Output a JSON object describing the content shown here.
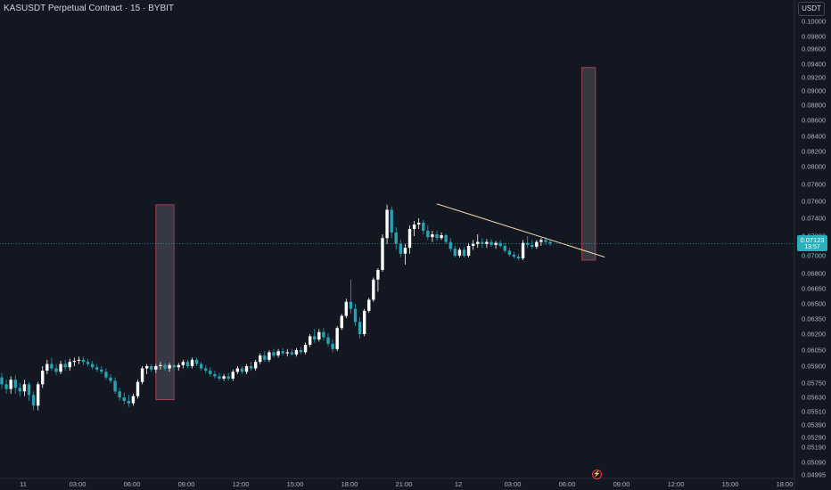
{
  "header": {
    "title": "KASUSDT Perpetual Contract · 15 · BYBIT"
  },
  "axis": {
    "currency": "USDT"
  },
  "current_price": {
    "value": "0.07123",
    "countdown": "13:57"
  },
  "colors": {
    "background": "#131722",
    "up": "#ffffff",
    "down": "#26a2b1",
    "trendline": "#f6d9a6",
    "zone_fill": "#4a4c56",
    "zone_border": "#c2454f",
    "price_line": "#2ab0bd"
  },
  "icons": {
    "flash": "lightning-icon"
  },
  "chart_data": {
    "type": "candlestick",
    "ylim": [
      0.0495,
      0.101
    ],
    "xlim": [
      "2024-09-10 21:45",
      "2024-09-12 18:00"
    ],
    "y_ticks": [
      "0.10000",
      "0.09800",
      "0.09600",
      "0.09400",
      "0.09200",
      "0.09000",
      "0.08800",
      "0.08600",
      "0.08400",
      "0.08200",
      "0.08000",
      "0.07800",
      "0.07600",
      "0.07400",
      "0.07200",
      "0.07000",
      "0.06800",
      "0.06650",
      "0.06500",
      "0.06350",
      "0.06200",
      "0.06050",
      "0.05900",
      "0.05750",
      "0.05630",
      "0.05510",
      "0.05390",
      "0.05290",
      "0.05190",
      "0.05090",
      "0.04995"
    ],
    "x_ticks": [
      "11",
      "03:00",
      "06:00",
      "09:00",
      "12:00",
      "15:00",
      "18:00",
      "21:00",
      "12",
      "03:00",
      "06:00",
      "09:00",
      "12:00",
      "15:00",
      "18:00"
    ],
    "candles": [
      {
        "o": 0.058,
        "h": 0.0584,
        "l": 0.057,
        "c": 0.0574
      },
      {
        "o": 0.0574,
        "h": 0.0578,
        "l": 0.0566,
        "c": 0.057
      },
      {
        "o": 0.057,
        "h": 0.0581,
        "l": 0.0566,
        "c": 0.0578
      },
      {
        "o": 0.0578,
        "h": 0.0582,
        "l": 0.0566,
        "c": 0.0571
      },
      {
        "o": 0.0571,
        "h": 0.0575,
        "l": 0.0564,
        "c": 0.0568
      },
      {
        "o": 0.0568,
        "h": 0.0578,
        "l": 0.0564,
        "c": 0.0574
      },
      {
        "o": 0.0574,
        "h": 0.0576,
        "l": 0.056,
        "c": 0.0565
      },
      {
        "o": 0.0565,
        "h": 0.0568,
        "l": 0.0552,
        "c": 0.0556
      },
      {
        "o": 0.0556,
        "h": 0.0576,
        "l": 0.0552,
        "c": 0.0574
      },
      {
        "o": 0.0574,
        "h": 0.059,
        "l": 0.0571,
        "c": 0.0586
      },
      {
        "o": 0.0586,
        "h": 0.0596,
        "l": 0.0583,
        "c": 0.0592
      },
      {
        "o": 0.0592,
        "h": 0.0598,
        "l": 0.0586,
        "c": 0.0588
      },
      {
        "o": 0.0588,
        "h": 0.0592,
        "l": 0.0582,
        "c": 0.0585
      },
      {
        "o": 0.0585,
        "h": 0.0595,
        "l": 0.0583,
        "c": 0.0592
      },
      {
        "o": 0.0592,
        "h": 0.0596,
        "l": 0.0586,
        "c": 0.0589
      },
      {
        "o": 0.0589,
        "h": 0.0597,
        "l": 0.0586,
        "c": 0.0594
      },
      {
        "o": 0.0594,
        "h": 0.0598,
        "l": 0.059,
        "c": 0.0595
      },
      {
        "o": 0.0595,
        "h": 0.0599,
        "l": 0.0592,
        "c": 0.0596
      },
      {
        "o": 0.0596,
        "h": 0.0599,
        "l": 0.0591,
        "c": 0.0594
      },
      {
        "o": 0.0594,
        "h": 0.0597,
        "l": 0.059,
        "c": 0.0592
      },
      {
        "o": 0.0592,
        "h": 0.0595,
        "l": 0.0587,
        "c": 0.0589
      },
      {
        "o": 0.0589,
        "h": 0.0592,
        "l": 0.0585,
        "c": 0.0587
      },
      {
        "o": 0.0587,
        "h": 0.059,
        "l": 0.0583,
        "c": 0.0585
      },
      {
        "o": 0.0585,
        "h": 0.0588,
        "l": 0.0578,
        "c": 0.058
      },
      {
        "o": 0.058,
        "h": 0.0583,
        "l": 0.0575,
        "c": 0.0577
      },
      {
        "o": 0.0577,
        "h": 0.058,
        "l": 0.0566,
        "c": 0.0568
      },
      {
        "o": 0.0568,
        "h": 0.0571,
        "l": 0.056,
        "c": 0.0563
      },
      {
        "o": 0.0563,
        "h": 0.0567,
        "l": 0.0557,
        "c": 0.056
      },
      {
        "o": 0.056,
        "h": 0.0565,
        "l": 0.0555,
        "c": 0.0558
      },
      {
        "o": 0.0558,
        "h": 0.0566,
        "l": 0.0556,
        "c": 0.0564
      },
      {
        "o": 0.0564,
        "h": 0.0578,
        "l": 0.0562,
        "c": 0.0576
      },
      {
        "o": 0.0576,
        "h": 0.059,
        "l": 0.0574,
        "c": 0.0588
      },
      {
        "o": 0.0588,
        "h": 0.0592,
        "l": 0.0583,
        "c": 0.059
      },
      {
        "o": 0.059,
        "h": 0.0592,
        "l": 0.0585,
        "c": 0.0587
      },
      {
        "o": 0.0587,
        "h": 0.0592,
        "l": 0.0584,
        "c": 0.059
      },
      {
        "o": 0.059,
        "h": 0.0594,
        "l": 0.0587,
        "c": 0.0591
      },
      {
        "o": 0.0591,
        "h": 0.0593,
        "l": 0.0586,
        "c": 0.0588
      },
      {
        "o": 0.0588,
        "h": 0.0593,
        "l": 0.0585,
        "c": 0.0591
      },
      {
        "o": 0.0591,
        "h": 0.0592,
        "l": 0.0586,
        "c": 0.0589
      },
      {
        "o": 0.0589,
        "h": 0.0593,
        "l": 0.0586,
        "c": 0.0591
      },
      {
        "o": 0.0591,
        "h": 0.0596,
        "l": 0.0588,
        "c": 0.0594
      },
      {
        "o": 0.0594,
        "h": 0.0596,
        "l": 0.0588,
        "c": 0.059
      },
      {
        "o": 0.059,
        "h": 0.0598,
        "l": 0.0588,
        "c": 0.0596
      },
      {
        "o": 0.0596,
        "h": 0.0598,
        "l": 0.059,
        "c": 0.0592
      },
      {
        "o": 0.0592,
        "h": 0.0594,
        "l": 0.0586,
        "c": 0.0588
      },
      {
        "o": 0.0588,
        "h": 0.0591,
        "l": 0.0584,
        "c": 0.0586
      },
      {
        "o": 0.0586,
        "h": 0.0589,
        "l": 0.0581,
        "c": 0.0583
      },
      {
        "o": 0.0583,
        "h": 0.0586,
        "l": 0.0579,
        "c": 0.0581
      },
      {
        "o": 0.0581,
        "h": 0.0584,
        "l": 0.0577,
        "c": 0.0579
      },
      {
        "o": 0.0579,
        "h": 0.0583,
        "l": 0.0577,
        "c": 0.0581
      },
      {
        "o": 0.0581,
        "h": 0.0584,
        "l": 0.0577,
        "c": 0.0579
      },
      {
        "o": 0.0579,
        "h": 0.0587,
        "l": 0.0577,
        "c": 0.0585
      },
      {
        "o": 0.0585,
        "h": 0.059,
        "l": 0.0583,
        "c": 0.0588
      },
      {
        "o": 0.0588,
        "h": 0.059,
        "l": 0.0583,
        "c": 0.0585
      },
      {
        "o": 0.0585,
        "h": 0.0592,
        "l": 0.0583,
        "c": 0.059
      },
      {
        "o": 0.059,
        "h": 0.0594,
        "l": 0.0586,
        "c": 0.0588
      },
      {
        "o": 0.0588,
        "h": 0.0596,
        "l": 0.0586,
        "c": 0.0594
      },
      {
        "o": 0.0594,
        "h": 0.0602,
        "l": 0.0592,
        "c": 0.06
      },
      {
        "o": 0.06,
        "h": 0.0604,
        "l": 0.0594,
        "c": 0.0596
      },
      {
        "o": 0.0596,
        "h": 0.0605,
        "l": 0.0594,
        "c": 0.0603
      },
      {
        "o": 0.0603,
        "h": 0.0606,
        "l": 0.0598,
        "c": 0.06
      },
      {
        "o": 0.06,
        "h": 0.0606,
        "l": 0.0598,
        "c": 0.0604
      },
      {
        "o": 0.0604,
        "h": 0.0607,
        "l": 0.06,
        "c": 0.0602
      },
      {
        "o": 0.0602,
        "h": 0.0606,
        "l": 0.0599,
        "c": 0.0603
      },
      {
        "o": 0.0603,
        "h": 0.0606,
        "l": 0.06,
        "c": 0.0601
      },
      {
        "o": 0.0601,
        "h": 0.0607,
        "l": 0.0599,
        "c": 0.0605
      },
      {
        "o": 0.0605,
        "h": 0.0608,
        "l": 0.0601,
        "c": 0.0603
      },
      {
        "o": 0.0603,
        "h": 0.0612,
        "l": 0.0601,
        "c": 0.061
      },
      {
        "o": 0.061,
        "h": 0.062,
        "l": 0.0608,
        "c": 0.0618
      },
      {
        "o": 0.0618,
        "h": 0.0625,
        "l": 0.0612,
        "c": 0.0615
      },
      {
        "o": 0.0615,
        "h": 0.0625,
        "l": 0.0613,
        "c": 0.0622
      },
      {
        "o": 0.0622,
        "h": 0.0626,
        "l": 0.0614,
        "c": 0.0617
      },
      {
        "o": 0.0617,
        "h": 0.0621,
        "l": 0.0608,
        "c": 0.0611
      },
      {
        "o": 0.0611,
        "h": 0.0615,
        "l": 0.0603,
        "c": 0.0606
      },
      {
        "o": 0.0606,
        "h": 0.0628,
        "l": 0.0604,
        "c": 0.0626
      },
      {
        "o": 0.0626,
        "h": 0.064,
        "l": 0.0624,
        "c": 0.0638
      },
      {
        "o": 0.0638,
        "h": 0.0655,
        "l": 0.0636,
        "c": 0.0652
      },
      {
        "o": 0.0652,
        "h": 0.0674,
        "l": 0.064,
        "c": 0.0645
      },
      {
        "o": 0.0645,
        "h": 0.065,
        "l": 0.0628,
        "c": 0.0632
      },
      {
        "o": 0.0632,
        "h": 0.0637,
        "l": 0.0616,
        "c": 0.062
      },
      {
        "o": 0.062,
        "h": 0.0645,
        "l": 0.0618,
        "c": 0.0643
      },
      {
        "o": 0.0643,
        "h": 0.0656,
        "l": 0.0641,
        "c": 0.0654
      },
      {
        "o": 0.0654,
        "h": 0.0676,
        "l": 0.0652,
        "c": 0.0674
      },
      {
        "o": 0.0674,
        "h": 0.0686,
        "l": 0.0662,
        "c": 0.0684
      },
      {
        "o": 0.0684,
        "h": 0.0722,
        "l": 0.0682,
        "c": 0.0718
      },
      {
        "o": 0.0718,
        "h": 0.0756,
        "l": 0.0712,
        "c": 0.075
      },
      {
        "o": 0.075,
        "h": 0.0754,
        "l": 0.0718,
        "c": 0.0724
      },
      {
        "o": 0.0724,
        "h": 0.073,
        "l": 0.0706,
        "c": 0.0712
      },
      {
        "o": 0.0712,
        "h": 0.0716,
        "l": 0.0698,
        "c": 0.0702
      },
      {
        "o": 0.0702,
        "h": 0.0712,
        "l": 0.069,
        "c": 0.0708
      },
      {
        "o": 0.0708,
        "h": 0.0732,
        "l": 0.0702,
        "c": 0.0728
      },
      {
        "o": 0.0728,
        "h": 0.0737,
        "l": 0.072,
        "c": 0.0733
      },
      {
        "o": 0.0733,
        "h": 0.074,
        "l": 0.0728,
        "c": 0.0735
      },
      {
        "o": 0.0735,
        "h": 0.0738,
        "l": 0.0722,
        "c": 0.0726
      },
      {
        "o": 0.0726,
        "h": 0.0732,
        "l": 0.0716,
        "c": 0.0719
      },
      {
        "o": 0.0719,
        "h": 0.0726,
        "l": 0.0714,
        "c": 0.0722
      },
      {
        "o": 0.0722,
        "h": 0.0726,
        "l": 0.0715,
        "c": 0.0718
      },
      {
        "o": 0.0718,
        "h": 0.0724,
        "l": 0.0716,
        "c": 0.0721
      },
      {
        "o": 0.0721,
        "h": 0.0723,
        "l": 0.0712,
        "c": 0.0714
      },
      {
        "o": 0.0714,
        "h": 0.0718,
        "l": 0.0704,
        "c": 0.0707
      },
      {
        "o": 0.0707,
        "h": 0.071,
        "l": 0.0698,
        "c": 0.07
      },
      {
        "o": 0.07,
        "h": 0.0708,
        "l": 0.0698,
        "c": 0.0706
      },
      {
        "o": 0.0706,
        "h": 0.0709,
        "l": 0.0698,
        "c": 0.07
      },
      {
        "o": 0.07,
        "h": 0.0713,
        "l": 0.0698,
        "c": 0.071
      },
      {
        "o": 0.071,
        "h": 0.0716,
        "l": 0.0706,
        "c": 0.0712
      },
      {
        "o": 0.0712,
        "h": 0.0722,
        "l": 0.0708,
        "c": 0.0714
      },
      {
        "o": 0.0714,
        "h": 0.0718,
        "l": 0.0708,
        "c": 0.0712
      },
      {
        "o": 0.0712,
        "h": 0.0717,
        "l": 0.0708,
        "c": 0.0714
      },
      {
        "o": 0.0714,
        "h": 0.0717,
        "l": 0.0709,
        "c": 0.0711
      },
      {
        "o": 0.0711,
        "h": 0.0715,
        "l": 0.0707,
        "c": 0.0713
      },
      {
        "o": 0.0713,
        "h": 0.0716,
        "l": 0.0708,
        "c": 0.071
      },
      {
        "o": 0.071,
        "h": 0.0713,
        "l": 0.0703,
        "c": 0.0705
      },
      {
        "o": 0.0705,
        "h": 0.0708,
        "l": 0.0699,
        "c": 0.0701
      },
      {
        "o": 0.0701,
        "h": 0.0704,
        "l": 0.0697,
        "c": 0.0699
      },
      {
        "o": 0.0699,
        "h": 0.0702,
        "l": 0.0695,
        "c": 0.0697
      },
      {
        "o": 0.0697,
        "h": 0.0716,
        "l": 0.0695,
        "c": 0.0713
      },
      {
        "o": 0.0713,
        "h": 0.072,
        "l": 0.0708,
        "c": 0.0711
      },
      {
        "o": 0.0711,
        "h": 0.0716,
        "l": 0.0707,
        "c": 0.0709
      },
      {
        "o": 0.0709,
        "h": 0.0716,
        "l": 0.0707,
        "c": 0.0714
      },
      {
        "o": 0.0714,
        "h": 0.0718,
        "l": 0.071,
        "c": 0.0716
      },
      {
        "o": 0.0716,
        "h": 0.0719,
        "l": 0.0711,
        "c": 0.0714
      },
      {
        "o": 0.0714,
        "h": 0.0716,
        "l": 0.071,
        "c": 0.07123
      }
    ],
    "trendline": [
      {
        "t": "2024-09-11 21:45",
        "price": 0.0757
      },
      {
        "t": "2024-09-12 07:00",
        "price": 0.06985
      }
    ],
    "zones": [
      {
        "start": "2024-09-11 06:15",
        "end": "2024-09-11 07:15",
        "top": 0.0756,
        "bottom": 0.0561
      },
      {
        "start": "2024-09-12 05:45",
        "end": "2024-09-12 06:30",
        "top": 0.0935,
        "bottom": 0.0695
      }
    ],
    "grid": false
  }
}
